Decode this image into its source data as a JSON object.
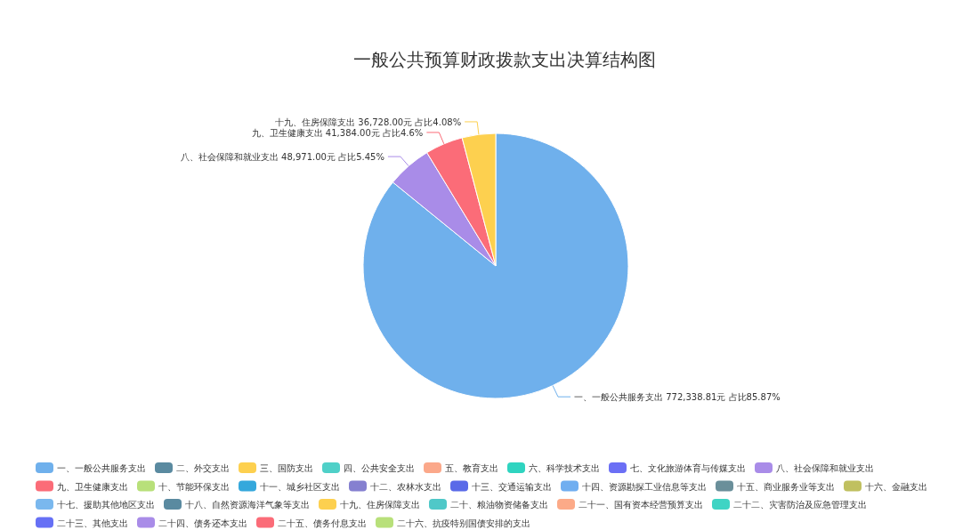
{
  "chart_data": {
    "type": "pie",
    "title": "一般公共预算财政拨款支出决算结构图",
    "categories": [
      "一、一般公共服务支出",
      "二、外交支出",
      "三、国防支出",
      "四、公共安全支出",
      "五、教育支出",
      "六、科学技术支出",
      "七、文化旅游体育与传媒支出",
      "八、社会保障和就业支出",
      "九、卫生健康支出",
      "十、节能环保支出",
      "十一、城乡社区支出",
      "十二、农林水支出",
      "十三、交通运输支出",
      "十四、资源勘探工业信息等支出",
      "十五、商业服务业等支出",
      "十六、金融支出",
      "十七、援助其他地区支出",
      "十八、自然资源海洋气象等支出",
      "十九、住房保障支出",
      "二十、粮油物资储备支出",
      "二十一、国有资本经营预算支出",
      "二十二、灾害防治及应急管理支出",
      "二十三、其他支出",
      "二十四、债务还本支出",
      "二十五、债务付息支出",
      "二十六、抗疫特别国债安排的支出"
    ],
    "values": [
      772338.81,
      0,
      0,
      0,
      0,
      0,
      0,
      48971.0,
      41384.0,
      0,
      0,
      0,
      0,
      0,
      0,
      0,
      0,
      0,
      36728.0,
      0,
      0,
      0,
      0,
      0,
      0,
      0
    ],
    "value_labels": [
      "772,338.81元 占比85.87%",
      null,
      null,
      null,
      null,
      null,
      null,
      "48,971.00元 占比5.45%",
      "41,384.00元 占比4.6%",
      null,
      null,
      null,
      null,
      null,
      null,
      null,
      null,
      null,
      "36,728.00元 占比4.08%",
      null,
      null,
      null,
      null,
      null,
      null,
      null
    ],
    "colors": [
      "#6fb0ec",
      "#5a8aa0",
      "#fdd04f",
      "#4fd0c8",
      "#fba88a",
      "#2fd4c0",
      "#6b6ff5",
      "#a98ce8",
      "#fb6c78",
      "#b8e07a",
      "#35a8dc",
      "#8580d0",
      "#5a6ae8",
      "#70aef0",
      "#6a8f9a",
      "#c0c060",
      "#7ab8ee",
      "#5a8aa0",
      "#fdd04f",
      "#4fc8c8",
      "#fcaa88",
      "#3fd4c4",
      "#6670f5",
      "#a98ce8",
      "#fb6c78",
      "#b8e07a"
    ],
    "legend": "bottom"
  }
}
